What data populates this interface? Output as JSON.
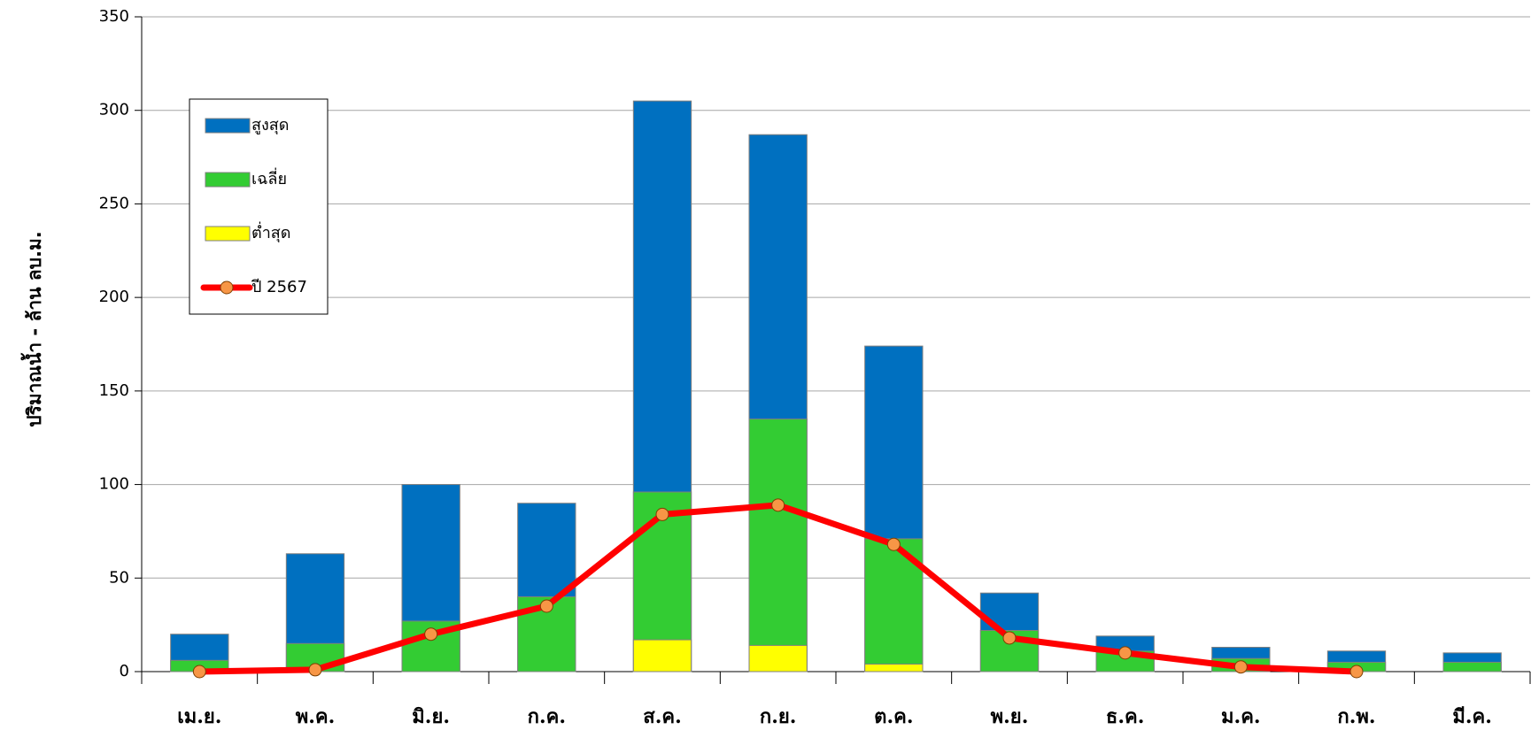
{
  "chart_data": {
    "type": "bar",
    "y_label": "ปริมาณน้ำ - ล้าน ลบ.ม.",
    "categories": [
      "เม.ย.",
      "พ.ค.",
      "มิ.ย.",
      "ก.ค.",
      "ส.ค.",
      "ก.ย.",
      "ต.ค.",
      "พ.ย.",
      "ธ.ค.",
      "ม.ค.",
      "ก.พ.",
      "มี.ค."
    ],
    "series": [
      {
        "name": "สูงสุด",
        "type": "bar",
        "color": "#0070c0",
        "values": [
          20,
          63,
          100,
          90,
          305,
          287,
          174,
          42,
          19,
          13,
          11,
          10
        ]
      },
      {
        "name": "เฉลี่ย",
        "type": "bar",
        "color": "#33cc33",
        "values": [
          6,
          15,
          27,
          40,
          96,
          135,
          71,
          22,
          11,
          7,
          5,
          5
        ]
      },
      {
        "name": "ต่ำสุด",
        "type": "bar",
        "color": "#ffff00",
        "values": [
          0,
          0,
          0,
          0,
          17,
          14,
          4,
          0,
          0,
          0,
          0,
          0
        ]
      },
      {
        "name": "ปี 2567",
        "type": "line",
        "color": "#ff0000",
        "marker_color": "#f79646",
        "values": [
          0,
          1,
          20,
          35,
          84,
          89,
          68,
          18,
          10,
          2.5,
          0,
          null
        ]
      }
    ],
    "ylim": [
      0,
      350
    ],
    "yticks": [
      0,
      50,
      100,
      150,
      200,
      250,
      300,
      350
    ],
    "grid": true,
    "legend": "upper left"
  }
}
